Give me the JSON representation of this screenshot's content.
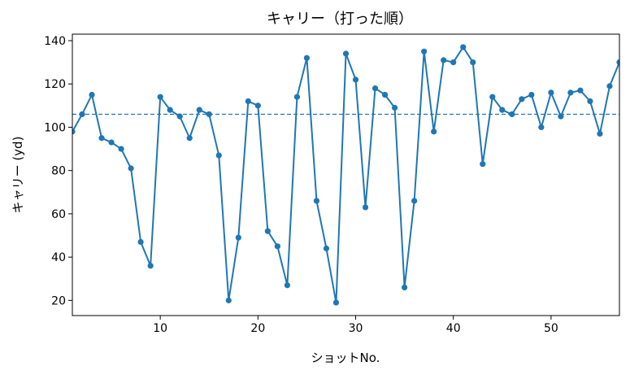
{
  "chart_data": {
    "type": "line",
    "title": "キャリー（打った順）",
    "xlabel": "ショットNo.",
    "ylabel": "キャリー (yd)",
    "xlim": [
      1,
      57
    ],
    "ylim": [
      13,
      143
    ],
    "xticks": [
      10,
      20,
      30,
      40,
      50
    ],
    "yticks": [
      20,
      40,
      60,
      80,
      100,
      120,
      140
    ],
    "grid": false,
    "mean_line": 106,
    "series": [
      {
        "color": "#1f77b4",
        "x": [
          1,
          2,
          3,
          4,
          5,
          6,
          7,
          8,
          9,
          10,
          11,
          12,
          13,
          14,
          15,
          16,
          17,
          18,
          19,
          20,
          21,
          22,
          23,
          24,
          25,
          26,
          27,
          28,
          29,
          30,
          31,
          32,
          33,
          34,
          35,
          36,
          37,
          38,
          39,
          40,
          41,
          42,
          43,
          44,
          45,
          46,
          47,
          48,
          49,
          50,
          51,
          52,
          53,
          54,
          55,
          56,
          57
        ],
        "values": [
          98,
          106,
          115,
          95,
          93,
          90,
          81,
          47,
          36,
          114,
          108,
          105,
          95,
          108,
          106,
          87,
          20,
          49,
          112,
          110,
          52,
          45,
          27,
          114,
          132,
          66,
          44,
          19,
          134,
          122,
          63,
          118,
          115,
          109,
          26,
          66,
          135,
          98,
          131,
          130,
          137,
          130,
          83,
          114,
          108,
          106,
          113,
          115,
          100,
          116,
          105,
          116,
          117,
          112,
          97,
          119,
          130
        ]
      }
    ]
  }
}
